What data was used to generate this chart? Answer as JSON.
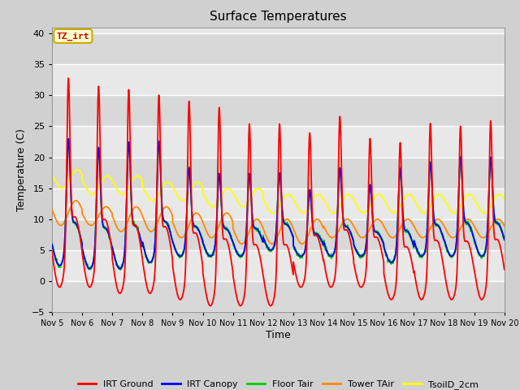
{
  "title": "Surface Temperatures",
  "xlabel": "Time",
  "ylabel": "Temperature (C)",
  "ylim": [
    -5,
    41
  ],
  "yticks": [
    -5,
    0,
    5,
    10,
    15,
    20,
    25,
    30,
    35,
    40
  ],
  "colors": {
    "IRT Ground": "#ff0000",
    "IRT Canopy": "#0000ff",
    "Floor Tair": "#00cc00",
    "Tower TAir": "#ff8800",
    "TsoilD_2cm": "#ffff00"
  },
  "legend_labels": [
    "IRT Ground",
    "IRT Canopy",
    "Floor Tair",
    "Tower TAir",
    "TsoilD_2cm"
  ],
  "figsize": [
    6.4,
    4.8
  ],
  "dpi": 100,
  "annotation_text": "TZ_irt",
  "fig_bg": "#d0d0d0",
  "plot_bg": "#e8e8e8",
  "stripe_bg": "#d4d4d4"
}
